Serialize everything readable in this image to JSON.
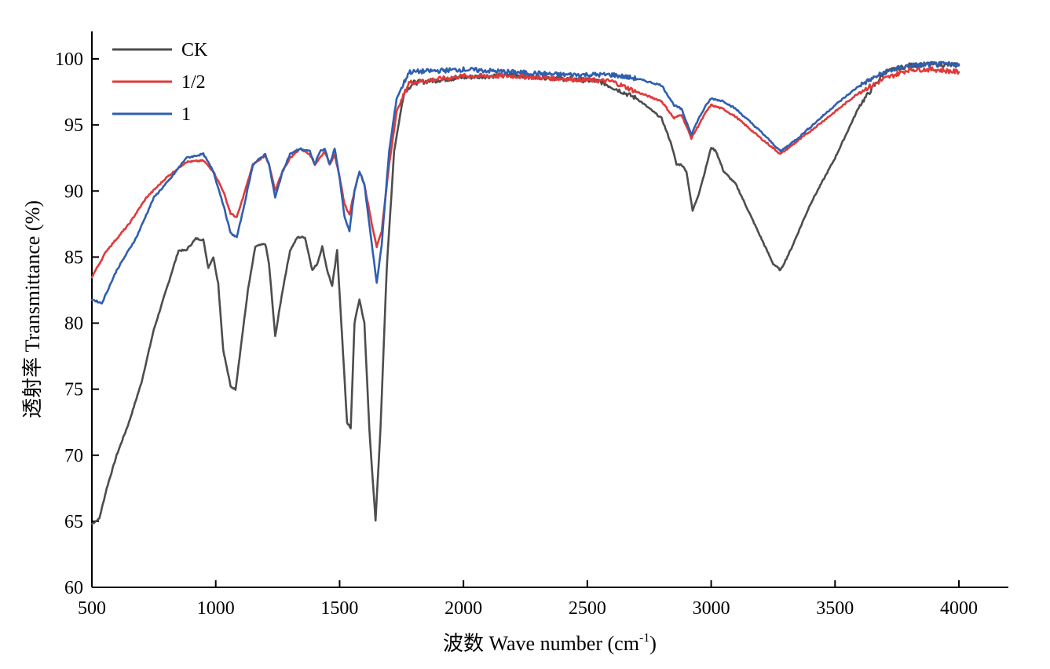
{
  "chart_data": {
    "type": "line",
    "title": "",
    "xlabel": "波数 Wave number (cm⁻¹)",
    "xlabel_main": "波数 Wave number (cm",
    "xlabel_sup": "-1",
    "xlabel_end": ")",
    "ylabel": "透射率 Transmittance (%)",
    "xlim": [
      500,
      4200
    ],
    "ylim": [
      60,
      102
    ],
    "xticks": [
      "500",
      "1000",
      "1500",
      "2000",
      "2500",
      "3000",
      "3500",
      "4000"
    ],
    "yticks": [
      "60",
      "65",
      "70",
      "75",
      "80",
      "85",
      "90",
      "95",
      "100"
    ],
    "legend_position": "top-left",
    "grid": false,
    "series": [
      {
        "name": "CK",
        "color": "#4d4d4d",
        "points": [
          [
            500,
            64.8
          ],
          [
            530,
            65.2
          ],
          [
            560,
            67.5
          ],
          [
            600,
            70.0
          ],
          [
            650,
            72.5
          ],
          [
            700,
            75.5
          ],
          [
            750,
            79.5
          ],
          [
            800,
            82.5
          ],
          [
            850,
            85.5
          ],
          [
            880,
            85.5
          ],
          [
            920,
            86.4
          ],
          [
            950,
            86.3
          ],
          [
            970,
            84.2
          ],
          [
            990,
            85.0
          ],
          [
            1010,
            83.0
          ],
          [
            1030,
            78.0
          ],
          [
            1060,
            75.2
          ],
          [
            1080,
            75.0
          ],
          [
            1100,
            78.0
          ],
          [
            1130,
            82.5
          ],
          [
            1160,
            85.8
          ],
          [
            1200,
            86.0
          ],
          [
            1215,
            84.5
          ],
          [
            1240,
            79.0
          ],
          [
            1270,
            82.5
          ],
          [
            1300,
            85.5
          ],
          [
            1330,
            86.5
          ],
          [
            1360,
            86.5
          ],
          [
            1390,
            84.0
          ],
          [
            1410,
            84.5
          ],
          [
            1430,
            85.8
          ],
          [
            1450,
            84.0
          ],
          [
            1470,
            82.8
          ],
          [
            1490,
            85.5
          ],
          [
            1510,
            79.0
          ],
          [
            1530,
            72.5
          ],
          [
            1545,
            72.0
          ],
          [
            1560,
            80.0
          ],
          [
            1580,
            81.8
          ],
          [
            1600,
            80.0
          ],
          [
            1620,
            72.0
          ],
          [
            1645,
            65.0
          ],
          [
            1665,
            72.0
          ],
          [
            1690,
            84.0
          ],
          [
            1720,
            93.0
          ],
          [
            1760,
            97.5
          ],
          [
            1800,
            98.2
          ],
          [
            2000,
            98.6
          ],
          [
            2200,
            98.8
          ],
          [
            2400,
            98.5
          ],
          [
            2550,
            98.3
          ],
          [
            2700,
            97.0
          ],
          [
            2800,
            95.5
          ],
          [
            2840,
            93.5
          ],
          [
            2860,
            92.0
          ],
          [
            2880,
            92.0
          ],
          [
            2900,
            91.5
          ],
          [
            2925,
            88.5
          ],
          [
            2950,
            89.8
          ],
          [
            2975,
            91.5
          ],
          [
            3000,
            93.3
          ],
          [
            3020,
            93.0
          ],
          [
            3050,
            91.5
          ],
          [
            3100,
            90.5
          ],
          [
            3150,
            88.5
          ],
          [
            3200,
            86.5
          ],
          [
            3250,
            84.5
          ],
          [
            3280,
            84.0
          ],
          [
            3320,
            85.5
          ],
          [
            3400,
            89.0
          ],
          [
            3500,
            92.5
          ],
          [
            3600,
            96.5
          ],
          [
            3700,
            99.0
          ],
          [
            3800,
            99.5
          ],
          [
            3900,
            99.6
          ],
          [
            4000,
            99.5
          ]
        ]
      },
      {
        "name": "1/2",
        "color": "#e03a3a",
        "points": [
          [
            500,
            83.5
          ],
          [
            560,
            85.5
          ],
          [
            650,
            87.5
          ],
          [
            720,
            89.5
          ],
          [
            800,
            91.0
          ],
          [
            880,
            92.2
          ],
          [
            950,
            92.3
          ],
          [
            990,
            91.5
          ],
          [
            1030,
            90.0
          ],
          [
            1060,
            88.3
          ],
          [
            1085,
            88.0
          ],
          [
            1110,
            89.5
          ],
          [
            1150,
            92.0
          ],
          [
            1200,
            92.7
          ],
          [
            1215,
            92.0
          ],
          [
            1240,
            90.0
          ],
          [
            1270,
            91.5
          ],
          [
            1300,
            92.5
          ],
          [
            1340,
            93.2
          ],
          [
            1380,
            92.8
          ],
          [
            1400,
            92.0
          ],
          [
            1420,
            92.5
          ],
          [
            1440,
            93.0
          ],
          [
            1460,
            92.0
          ],
          [
            1480,
            92.8
          ],
          [
            1500,
            91.0
          ],
          [
            1520,
            89.0
          ],
          [
            1540,
            88.2
          ],
          [
            1560,
            90.0
          ],
          [
            1580,
            91.5
          ],
          [
            1600,
            90.5
          ],
          [
            1630,
            87.5
          ],
          [
            1650,
            85.8
          ],
          [
            1670,
            87.0
          ],
          [
            1700,
            92.0
          ],
          [
            1730,
            96.0
          ],
          [
            1780,
            98.2
          ],
          [
            2000,
            98.7
          ],
          [
            2200,
            98.7
          ],
          [
            2400,
            98.5
          ],
          [
            2600,
            98.3
          ],
          [
            2700,
            97.5
          ],
          [
            2800,
            96.8
          ],
          [
            2850,
            95.5
          ],
          [
            2880,
            95.8
          ],
          [
            2920,
            94.0
          ],
          [
            2950,
            95.0
          ],
          [
            2980,
            96.0
          ],
          [
            3000,
            96.5
          ],
          [
            3050,
            96.2
          ],
          [
            3100,
            95.6
          ],
          [
            3200,
            94.0
          ],
          [
            3280,
            92.8
          ],
          [
            3350,
            93.8
          ],
          [
            3500,
            96.0
          ],
          [
            3600,
            97.5
          ],
          [
            3700,
            98.5
          ],
          [
            3800,
            99.2
          ],
          [
            3900,
            99.2
          ],
          [
            4000,
            99.0
          ]
        ]
      },
      {
        "name": "1",
        "color": "#2f5fb0",
        "points": [
          [
            500,
            81.8
          ],
          [
            540,
            81.5
          ],
          [
            600,
            84.0
          ],
          [
            680,
            86.5
          ],
          [
            750,
            89.5
          ],
          [
            820,
            91.0
          ],
          [
            880,
            92.5
          ],
          [
            950,
            92.8
          ],
          [
            990,
            91.5
          ],
          [
            1030,
            89.0
          ],
          [
            1060,
            86.8
          ],
          [
            1085,
            86.5
          ],
          [
            1110,
            88.5
          ],
          [
            1150,
            92.0
          ],
          [
            1200,
            92.8
          ],
          [
            1215,
            92.0
          ],
          [
            1240,
            89.5
          ],
          [
            1270,
            91.5
          ],
          [
            1300,
            92.8
          ],
          [
            1340,
            93.2
          ],
          [
            1380,
            93.0
          ],
          [
            1400,
            92.0
          ],
          [
            1420,
            93.0
          ],
          [
            1440,
            93.2
          ],
          [
            1460,
            92.0
          ],
          [
            1480,
            93.2
          ],
          [
            1500,
            91.0
          ],
          [
            1520,
            88.0
          ],
          [
            1540,
            87.0
          ],
          [
            1560,
            90.0
          ],
          [
            1580,
            91.5
          ],
          [
            1600,
            90.5
          ],
          [
            1630,
            86.0
          ],
          [
            1650,
            83.0
          ],
          [
            1670,
            86.0
          ],
          [
            1700,
            93.0
          ],
          [
            1730,
            97.0
          ],
          [
            1780,
            99.0
          ],
          [
            2000,
            99.2
          ],
          [
            2200,
            99.0
          ],
          [
            2400,
            98.8
          ],
          [
            2600,
            98.8
          ],
          [
            2700,
            98.5
          ],
          [
            2800,
            98.0
          ],
          [
            2850,
            96.5
          ],
          [
            2880,
            96.2
          ],
          [
            2920,
            94.3
          ],
          [
            2950,
            95.5
          ],
          [
            2980,
            96.5
          ],
          [
            3000,
            97.0
          ],
          [
            3050,
            96.8
          ],
          [
            3100,
            96.2
          ],
          [
            3200,
            94.5
          ],
          [
            3280,
            93.0
          ],
          [
            3350,
            94.0
          ],
          [
            3500,
            96.5
          ],
          [
            3600,
            98.0
          ],
          [
            3700,
            99.0
          ],
          [
            3800,
            99.5
          ],
          [
            3900,
            99.6
          ],
          [
            4000,
            99.6
          ]
        ]
      }
    ]
  }
}
